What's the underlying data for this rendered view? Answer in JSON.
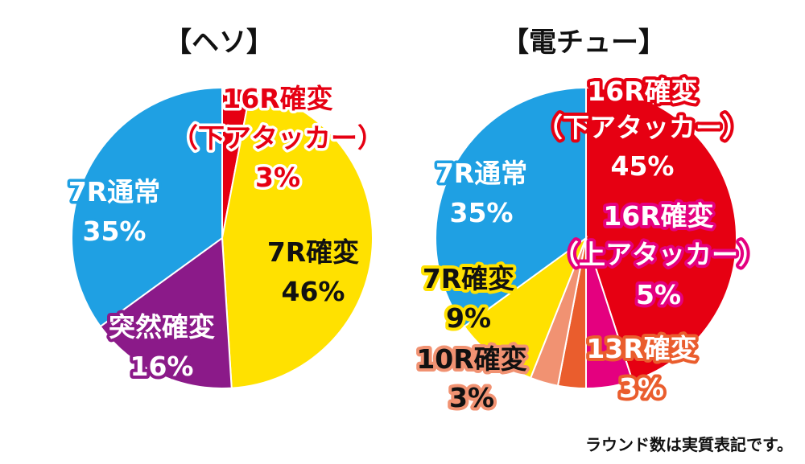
{
  "chart_data": [
    {
      "type": "pie",
      "title": "【ヘソ】",
      "slices": [
        {
          "name_lines": [
            "16R確変",
            "（下アタッカー）"
          ],
          "value": 3,
          "value_label": "3%",
          "color": "#e60012"
        },
        {
          "name_lines": [
            "7R確変"
          ],
          "value": 46,
          "value_label": "46%",
          "color": "#ffe100"
        },
        {
          "name_lines": [
            "突然確変"
          ],
          "value": 16,
          "value_label": "16%",
          "color": "#8b1a89"
        },
        {
          "name_lines": [
            "7R通常"
          ],
          "value": 35,
          "value_label": "35%",
          "color": "#1fa0e3"
        }
      ]
    },
    {
      "type": "pie",
      "title": "【電チュー】",
      "slices": [
        {
          "name_lines": [
            "16R確変",
            "（下アタッカー）"
          ],
          "value": 45,
          "value_label": "45%",
          "color": "#e60012"
        },
        {
          "name_lines": [
            "16R確変",
            "（上アタッカー）"
          ],
          "value": 5,
          "value_label": "5%",
          "color": "#e4007f"
        },
        {
          "name_lines": [
            "13R確変"
          ],
          "value": 3,
          "value_label": "3%",
          "color": "#ea5d2d"
        },
        {
          "name_lines": [
            "10R確変"
          ],
          "value": 3,
          "value_label": "3%",
          "color": "#f19272"
        },
        {
          "name_lines": [
            "7R確変"
          ],
          "value": 9,
          "value_label": "9%",
          "color": "#ffe100"
        },
        {
          "name_lines": [
            "7R通常"
          ],
          "value": 35,
          "value_label": "35%",
          "color": "#1fa0e3"
        }
      ]
    }
  ],
  "footnote": "ラウンド数は実質表記です。"
}
